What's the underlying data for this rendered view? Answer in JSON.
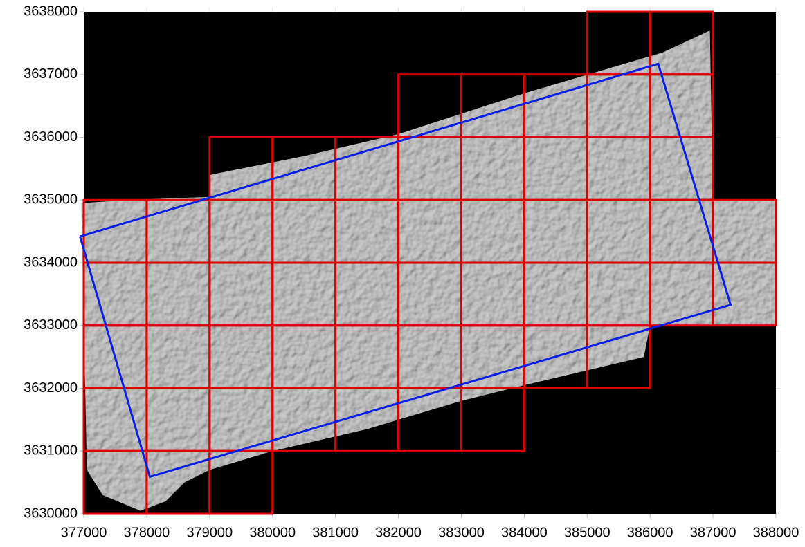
{
  "chart_data": {
    "type": "map",
    "xlim": [
      377000,
      388000
    ],
    "ylim": [
      3630000,
      3638000
    ],
    "xticks": [
      377000,
      378000,
      379000,
      380000,
      381000,
      382000,
      383000,
      384000,
      385000,
      386000,
      387000,
      388000
    ],
    "yticks": [
      3630000,
      3631000,
      3632000,
      3633000,
      3634000,
      3635000,
      3636000,
      3637000,
      3638000
    ],
    "background": "#000000",
    "coverage": {
      "color": "#bdbdbd",
      "x": [
        376960,
        377700,
        379000,
        379000,
        380500,
        382000,
        384000,
        386200,
        386950,
        387000,
        388000,
        388000,
        386000,
        385900,
        384000,
        383000,
        381500,
        380000,
        379000,
        378600,
        378300,
        377900,
        377300,
        377050,
        376960
      ],
      "y": [
        3634950,
        3635000,
        3635050,
        3635400,
        3635700,
        3636050,
        3636700,
        3637350,
        3637700,
        3635000,
        3635000,
        3633000,
        3633000,
        3632500,
        3632050,
        3631800,
        3631350,
        3631000,
        3630700,
        3630500,
        3630200,
        3630050,
        3630300,
        3630700,
        3634950
      ]
    },
    "tiles": {
      "color": "#e00000",
      "rows": [
        {
          "y0": 3637000,
          "y1": 3638000,
          "x": [
            385000,
            386000,
            387000
          ]
        },
        {
          "y0": 3636000,
          "y1": 3637000,
          "x": [
            382000,
            383000,
            384000,
            385000,
            386000,
            387000
          ]
        },
        {
          "y0": 3635000,
          "y1": 3636000,
          "x": [
            379000,
            380000,
            381000,
            382000,
            383000,
            384000,
            385000,
            386000,
            387000
          ]
        },
        {
          "y0": 3634000,
          "y1": 3635000,
          "x": [
            377000,
            378000,
            379000,
            380000,
            381000,
            382000,
            383000,
            384000,
            385000,
            386000,
            387000,
            388000
          ]
        },
        {
          "y0": 3633000,
          "y1": 3634000,
          "x": [
            377000,
            378000,
            379000,
            380000,
            381000,
            382000,
            383000,
            384000,
            385000,
            386000,
            387000,
            388000
          ]
        },
        {
          "y0": 3632000,
          "y1": 3633000,
          "x": [
            377000,
            378000,
            379000,
            380000,
            381000,
            382000,
            383000,
            384000,
            385000,
            386000
          ]
        },
        {
          "y0": 3631000,
          "y1": 3632000,
          "x": [
            377000,
            378000,
            379000,
            380000,
            381000,
            382000,
            383000,
            384000
          ]
        },
        {
          "y0": 3630000,
          "y1": 3631000,
          "x": [
            377000,
            378000,
            379000,
            380000
          ]
        }
      ]
    },
    "footprint": {
      "color": "#0a1ee6",
      "x": [
        376940,
        386130,
        387280,
        378050,
        376940
      ],
      "y": [
        3634420,
        3637170,
        3633330,
        3630590,
        3634420
      ]
    }
  }
}
